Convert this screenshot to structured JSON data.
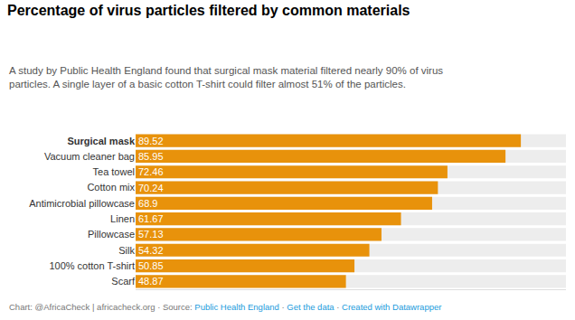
{
  "chart_data": {
    "type": "bar",
    "orientation": "horizontal",
    "title": "Percentage of virus particles filtered by common materials",
    "subtitle": "A study by Public Health England found that surgical mask material filtered nearly 90% of virus\nparticles. A single layer of a basic cotton T-shirt could filter almost 51% of the particles.",
    "categories": [
      "Surgical mask",
      "Vacuum cleaner bag",
      "Tea towel",
      "Cotton mix",
      "Antimicrobial pillowcase",
      "Linen",
      "Pillowcase",
      "Silk",
      "100% cotton T-shirt",
      "Scarf"
    ],
    "values": [
      89.52,
      85.95,
      72.46,
      70.24,
      68.9,
      61.67,
      57.13,
      54.32,
      50.85,
      48.87
    ],
    "color": "#E8920B",
    "data_labels": true,
    "xlim": [
      0,
      100
    ],
    "tick_labels": "y",
    "grid": false,
    "annotations": [
      {
        "text": "Chart: @AfricaCheck | africacheck.org · Source: ",
        "color": "#777777"
      },
      {
        "text": "Public Health England",
        "color": "#1A9BDC"
      },
      {
        "text": " · ",
        "color": "#777777"
      },
      {
        "text": "Get the data",
        "color": "#1A9BDC"
      },
      {
        "text": " · ",
        "color": "#777777"
      },
      {
        "text": "Created with Datawrapper",
        "color": "#1A9BDC"
      }
    ]
  }
}
